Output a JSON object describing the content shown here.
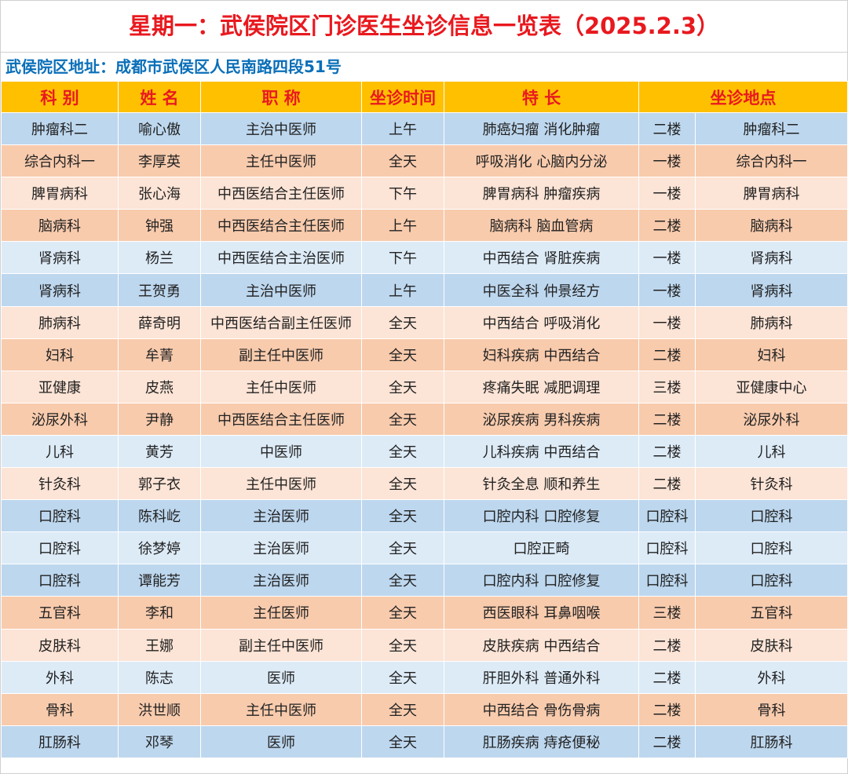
{
  "title": "星期一：武侯院区门诊医生坐诊信息一览表（2025.2.3）",
  "address": "武侯院区地址：成都市武侯区人民南路四段51号",
  "table": {
    "header": [
      "科 别",
      "姓 名",
      "职 称",
      "坐诊时间",
      "特 长",
      "坐诊地点"
    ],
    "rows": [
      [
        "肿瘤科二",
        "喻心傲",
        "主治中医师",
        "上午",
        "肺癌妇瘤 消化肿瘤",
        "二楼",
        "肿瘤科二"
      ],
      [
        "综合内科一",
        "李厚英",
        "主任中医师",
        "全天",
        "呼吸消化 心脑内分泌",
        "一楼",
        "综合内科一"
      ],
      [
        "脾胃病科",
        "张心海",
        "中西医结合主任医师",
        "下午",
        "脾胃病科 肿瘤疾病",
        "一楼",
        "脾胃病科"
      ],
      [
        "脑病科",
        "钟强",
        "中西医结合主任医师",
        "上午",
        "脑病科 脑血管病",
        "二楼",
        "脑病科"
      ],
      [
        "肾病科",
        "杨兰",
        "中西医结合主治医师",
        "下午",
        "中西结合 肾脏疾病",
        "一楼",
        "肾病科"
      ],
      [
        "肾病科",
        "王贺勇",
        "主治中医师",
        "上午",
        "中医全科 仲景经方",
        "一楼",
        "肾病科"
      ],
      [
        "肺病科",
        "薛奇明",
        "中西医结合副主任医师",
        "全天",
        "中西结合 呼吸消化",
        "一楼",
        "肺病科"
      ],
      [
        "妇科",
        "牟菁",
        "副主任中医师",
        "全天",
        "妇科疾病 中西结合",
        "二楼",
        "妇科"
      ],
      [
        "亚健康",
        "皮燕",
        "主任中医师",
        "全天",
        "疼痛失眠 减肥调理",
        "三楼",
        "亚健康中心"
      ],
      [
        "泌尿外科",
        "尹静",
        "中西医结合主任医师",
        "全天",
        "泌尿疾病 男科疾病",
        "二楼",
        "泌尿外科"
      ],
      [
        "儿科",
        "黄芳",
        "中医师",
        "全天",
        "儿科疾病 中西结合",
        "二楼",
        "儿科"
      ],
      [
        "针灸科",
        "郭子衣",
        "主任中医师",
        "全天",
        "针灸全息 顺和养生",
        "二楼",
        "针灸科"
      ],
      [
        "口腔科",
        "陈科屹",
        "主治医师",
        "全天",
        "口腔内科 口腔修复",
        "口腔科",
        "口腔科"
      ],
      [
        "口腔科",
        "徐梦婷",
        "主治医师",
        "全天",
        "口腔正畸",
        "口腔科",
        "口腔科"
      ],
      [
        "口腔科",
        "谭能芳",
        "主治医师",
        "全天",
        "口腔内科 口腔修复",
        "口腔科",
        "口腔科"
      ],
      [
        "五官科",
        "李和",
        "主任医师",
        "全天",
        "西医眼科 耳鼻咽喉",
        "三楼",
        "五官科"
      ],
      [
        "皮肤科",
        "王娜",
        "副主任中医师",
        "全天",
        "皮肤疾病 中西结合",
        "二楼",
        "皮肤科"
      ],
      [
        "外科",
        "陈志",
        "医师",
        "全天",
        "肝胆外科 普通外科",
        "二楼",
        "外科"
      ],
      [
        "骨科",
        "洪世顺",
        "主任中医师",
        "全天",
        "中西结合 骨伤骨病",
        "二楼",
        "骨科"
      ],
      [
        "肛肠科",
        "邓琴",
        "医师",
        "全天",
        "肛肠疾病 痔疮便秘",
        "二楼",
        "肛肠科"
      ]
    ]
  }
}
